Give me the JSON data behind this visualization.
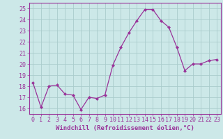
{
  "x": [
    0,
    1,
    2,
    3,
    4,
    5,
    6,
    7,
    8,
    9,
    10,
    11,
    12,
    13,
    14,
    15,
    16,
    17,
    18,
    19,
    20,
    21,
    22,
    23
  ],
  "y": [
    18.3,
    16.1,
    18.0,
    18.1,
    17.3,
    17.2,
    15.9,
    17.0,
    16.9,
    17.2,
    19.9,
    21.5,
    22.8,
    23.9,
    24.9,
    24.9,
    23.9,
    23.3,
    21.5,
    19.4,
    20.0,
    20.0,
    20.3,
    20.4
  ],
  "line_color": "#993399",
  "marker": "D",
  "marker_size": 2.0,
  "line_width": 0.9,
  "bg_color": "#cce8e8",
  "grid_color": "#aacccc",
  "xlabel": "Windchill (Refroidissement éolien,°C)",
  "xlabel_fontsize": 6.5,
  "xlabel_color": "#993399",
  "tick_color": "#993399",
  "tick_fontsize": 6.0,
  "ylim": [
    15.5,
    25.5
  ],
  "xlim": [
    -0.5,
    23.5
  ],
  "yticks": [
    16,
    17,
    18,
    19,
    20,
    21,
    22,
    23,
    24,
    25
  ],
  "xticks": [
    0,
    1,
    2,
    3,
    4,
    5,
    6,
    7,
    8,
    9,
    10,
    11,
    12,
    13,
    14,
    15,
    16,
    17,
    18,
    19,
    20,
    21,
    22,
    23
  ]
}
